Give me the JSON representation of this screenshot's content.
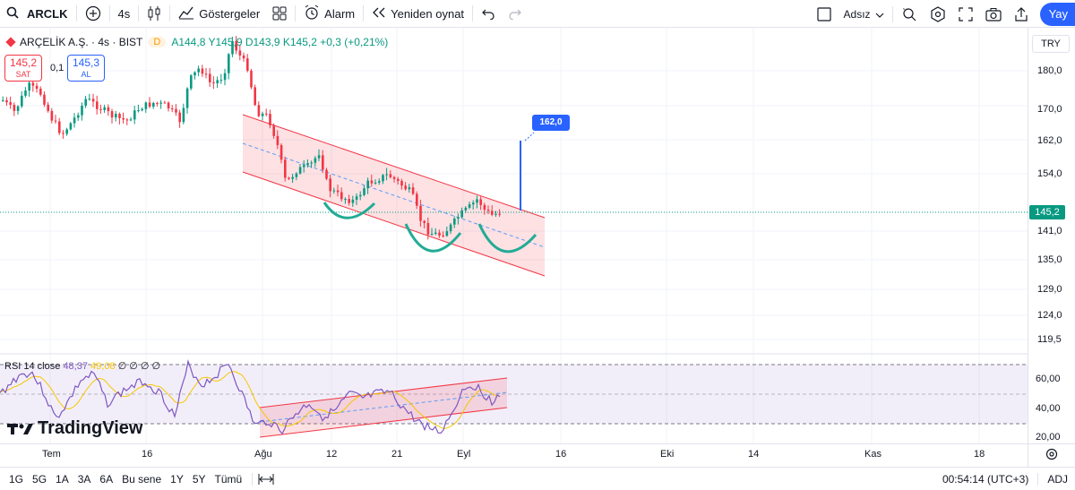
{
  "toolbar": {
    "symbol": "ARCLK",
    "interval": "4s",
    "indicators_label": "Göstergeler",
    "alarm_label": "Alarm",
    "replay_label": "Yeniden oynat",
    "layout_name": "Adsız",
    "publish_label": "Yay"
  },
  "legend": {
    "name": "ARÇELİK A.Ş. · 4s · BIST",
    "badge": "D",
    "ohlc_text": "A144,8 Y145,9 D143,9 K145,2 +0,3 (+0,21%)"
  },
  "trade": {
    "sell_price": "145,2",
    "sell_label": "SAT",
    "spread": "0,1",
    "buy_price": "145,3",
    "buy_label": "AL"
  },
  "price_axis": {
    "currency": "TRY",
    "ticks": [
      "180,0",
      "170,0",
      "162,0",
      "154,0",
      "141,0",
      "135,0",
      "129,0",
      "124,0",
      "119,5"
    ],
    "current_price": "145,2",
    "rsi_ticks": [
      "60,00",
      "40,00",
      "20,00"
    ]
  },
  "annotation": {
    "target_label": "162,0"
  },
  "rsi": {
    "label": "RSI 14 close",
    "value": "48,37",
    "ma_value": "49,08",
    "extra": "∅ ∅ ∅ ∅"
  },
  "branding": {
    "logo_text": "TradingView"
  },
  "time_axis": {
    "labels": [
      "Tem",
      "16",
      "Ağu",
      "12",
      "21",
      "Eyl",
      "16",
      "Eki",
      "14",
      "Kas",
      "18"
    ]
  },
  "bottombar": {
    "ranges": [
      "1G",
      "5G",
      "1A",
      "3A",
      "6A",
      "Bu sene",
      "1Y",
      "5Y",
      "Tümü"
    ],
    "clock": "00:54:14 (UTC+3)",
    "adj": "ADJ"
  },
  "colors": {
    "up": "#089981",
    "down": "#f23645",
    "accent": "#2962ff",
    "rsi_line": "#7e57c2",
    "rsi_ma": "#f7c600"
  }
}
